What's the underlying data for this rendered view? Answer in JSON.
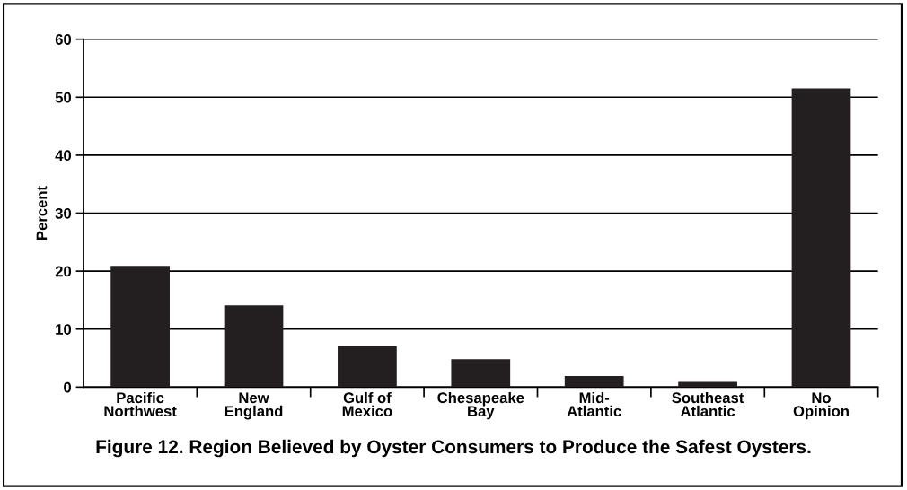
{
  "chart_data": {
    "type": "bar",
    "title": "Figure 12. Region Believed by Oyster Consumers to Produce the Safest Oysters.",
    "ylabel": "Percent",
    "categories": [
      "Pacific\nNorthwest",
      "New\nEngland",
      "Gulf of\nMexico",
      "Chesapeake\nBay",
      "Mid-\nAtlantic",
      "Southeast\nAtlantic",
      "No\nOpinion"
    ],
    "values": [
      20.9,
      14.1,
      7.1,
      4.8,
      1.9,
      0.9,
      51.5
    ],
    "color": "#231f20",
    "ylim": [
      0,
      60
    ],
    "yticks": [
      0,
      10,
      20,
      30,
      40,
      50,
      60
    ],
    "grid": "y"
  }
}
